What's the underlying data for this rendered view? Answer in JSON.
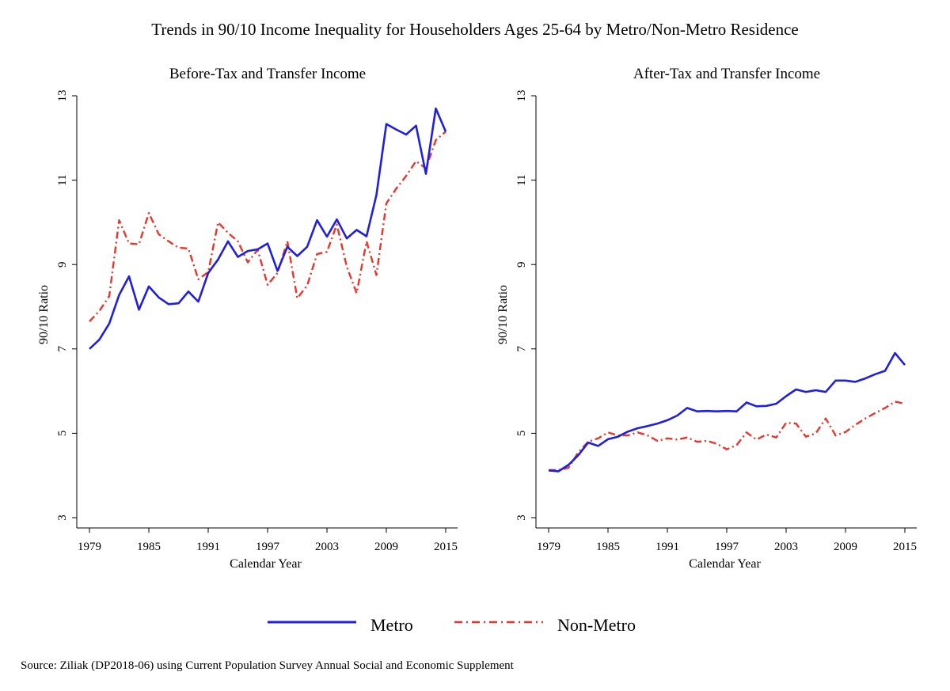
{
  "title": "Trends in 90/10 Income Inequality for Householders Ages 25-64 by Metro/Non-Metro Residence",
  "source": "Source: Ziliak (DP2018-06) using Current Population Survey Annual Social and Economic Supplement",
  "legend": [
    {
      "name": "Metro",
      "color": "#1f1fe0",
      "style": "solid"
    },
    {
      "name": "Non-Metro",
      "color": "#e8362a",
      "style": "dash-dot"
    }
  ],
  "chart_data": [
    {
      "type": "line",
      "title": "Before-Tax and Transfer Income",
      "xlabel": "Calendar Year",
      "ylabel": "90/10 Ratio",
      "xlim": [
        1979,
        2015
      ],
      "ylim": [
        3,
        13
      ],
      "xticks": [
        1979,
        1985,
        1991,
        1997,
        2003,
        2009,
        2015
      ],
      "yticks": [
        3,
        5,
        7,
        9,
        11,
        13
      ],
      "grid": false,
      "x": [
        1979,
        1980,
        1981,
        1982,
        1983,
        1984,
        1985,
        1986,
        1987,
        1988,
        1989,
        1990,
        1991,
        1992,
        1993,
        1994,
        1995,
        1996,
        1997,
        1998,
        1999,
        2000,
        2001,
        2002,
        2003,
        2004,
        2005,
        2006,
        2007,
        2008,
        2009,
        2010,
        2011,
        2012,
        2013,
        2014,
        2015
      ],
      "series": [
        {
          "name": "Metro",
          "values": [
            7.0,
            7.22,
            7.6,
            8.28,
            8.72,
            7.93,
            8.48,
            8.22,
            8.06,
            8.08,
            8.36,
            8.12,
            8.8,
            9.12,
            9.55,
            9.18,
            9.32,
            9.36,
            9.5,
            8.85,
            9.42,
            9.2,
            9.42,
            10.05,
            9.66,
            10.07,
            9.62,
            9.82,
            9.67,
            10.65,
            12.33,
            12.2,
            12.08,
            12.29,
            11.15,
            12.7,
            12.15
          ]
        },
        {
          "name": "Non-Metro",
          "values": [
            7.65,
            7.9,
            8.25,
            10.05,
            9.5,
            9.48,
            10.22,
            9.72,
            9.55,
            9.4,
            9.38,
            8.65,
            8.82,
            10.0,
            9.75,
            9.55,
            9.05,
            9.35,
            8.52,
            8.8,
            9.55,
            8.2,
            8.5,
            9.25,
            9.3,
            9.95,
            8.95,
            8.32,
            9.55,
            8.75,
            10.45,
            10.8,
            11.1,
            11.45,
            11.28,
            11.95,
            12.15
          ]
        }
      ]
    },
    {
      "type": "line",
      "title": "After-Tax and Transfer Income",
      "xlabel": "Calendar Year",
      "ylabel": "90/10 Ratio",
      "xlim": [
        1979,
        2015
      ],
      "ylim": [
        3,
        13
      ],
      "xticks": [
        1979,
        1985,
        1991,
        1997,
        2003,
        2009,
        2015
      ],
      "yticks": [
        3,
        5,
        7,
        9,
        11,
        13
      ],
      "grid": false,
      "x": [
        1979,
        1980,
        1981,
        1982,
        1983,
        1984,
        1985,
        1986,
        1987,
        1988,
        1989,
        1990,
        1991,
        1992,
        1993,
        1994,
        1995,
        1996,
        1997,
        1998,
        1999,
        2000,
        2001,
        2002,
        2003,
        2004,
        2005,
        2006,
        2007,
        2008,
        2009,
        2010,
        2011,
        2012,
        2013,
        2014,
        2015
      ],
      "series": [
        {
          "name": "Metro",
          "values": [
            4.12,
            4.1,
            4.25,
            4.48,
            4.78,
            4.7,
            4.86,
            4.92,
            5.04,
            5.12,
            5.17,
            5.23,
            5.31,
            5.42,
            5.6,
            5.52,
            5.53,
            5.52,
            5.53,
            5.52,
            5.73,
            5.64,
            5.65,
            5.7,
            5.88,
            6.04,
            5.98,
            6.02,
            5.98,
            6.25,
            6.25,
            6.22,
            6.3,
            6.4,
            6.48,
            6.9,
            6.62
          ]
        },
        {
          "name": "Non-Metro",
          "values": [
            4.13,
            4.13,
            4.18,
            4.55,
            4.8,
            4.88,
            5.02,
            4.95,
            4.95,
            5.02,
            4.95,
            4.82,
            4.88,
            4.85,
            4.9,
            4.8,
            4.82,
            4.75,
            4.62,
            4.72,
            5.02,
            4.85,
            4.97,
            4.9,
            5.25,
            5.23,
            4.92,
            5.0,
            5.35,
            4.95,
            5.03,
            5.2,
            5.35,
            5.48,
            5.6,
            5.75,
            5.7
          ]
        }
      ]
    }
  ]
}
